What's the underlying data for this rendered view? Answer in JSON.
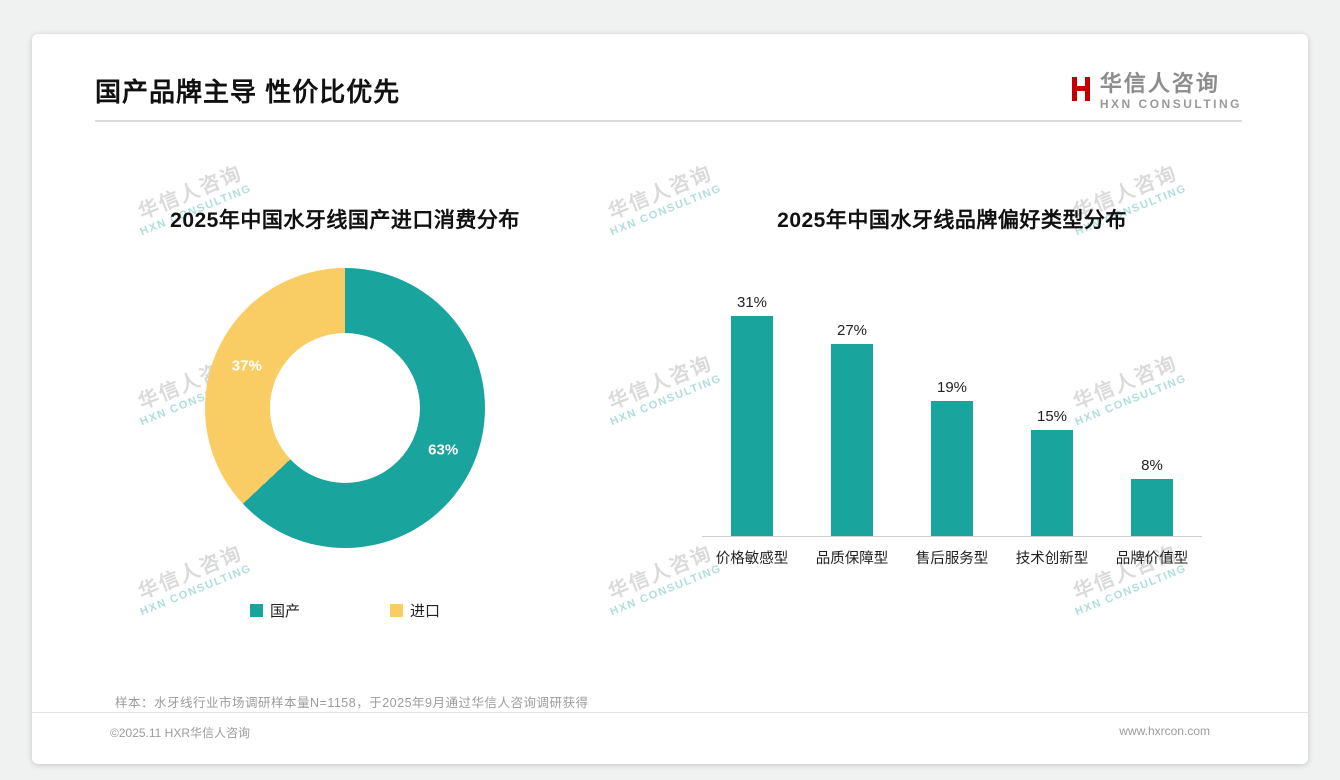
{
  "page": {
    "title": "国产品牌主导 性价比优先",
    "logo": {
      "name": "华信人咨询",
      "sub": "HXN CONSULTING"
    },
    "watermark": {
      "line1": "华信人咨询",
      "line2": "HXN CONSULTING"
    },
    "footnote": "样本：水牙线行业市场调研样本量N=1158，于2025年9月通过华信人咨询调研获得",
    "footer_left": "©2025.11 HXR华信人咨询",
    "footer_right": "www.hxrcon.com"
  },
  "colors": {
    "teal": "#1AA49E",
    "yellow": "#FACD64",
    "logo_red": "#C00000"
  },
  "chart_data": [
    {
      "type": "pie",
      "donut": true,
      "title": "2025年中国水牙线国产进口消费分布",
      "labels": [
        "国产",
        "进口"
      ],
      "values": [
        63,
        37
      ],
      "value_labels": [
        "63%",
        "37%"
      ],
      "colors": [
        "#1AA49E",
        "#FACD64"
      ],
      "legend_position": "bottom",
      "start_angle_deg": 0,
      "direction": "clockwise"
    },
    {
      "type": "bar",
      "title": "2025年中国水牙线品牌偏好类型分布",
      "categories": [
        "价格敏感型",
        "品质保障型",
        "售后服务型",
        "技术创新型",
        "品牌价值型"
      ],
      "values": [
        31,
        27,
        19,
        15,
        8
      ],
      "value_labels": [
        "31%",
        "27%",
        "19%",
        "15%",
        "8%"
      ],
      "bar_color": "#1AA49E",
      "ylim": [
        0,
        35
      ],
      "grid": false,
      "legend_position": "none"
    }
  ]
}
